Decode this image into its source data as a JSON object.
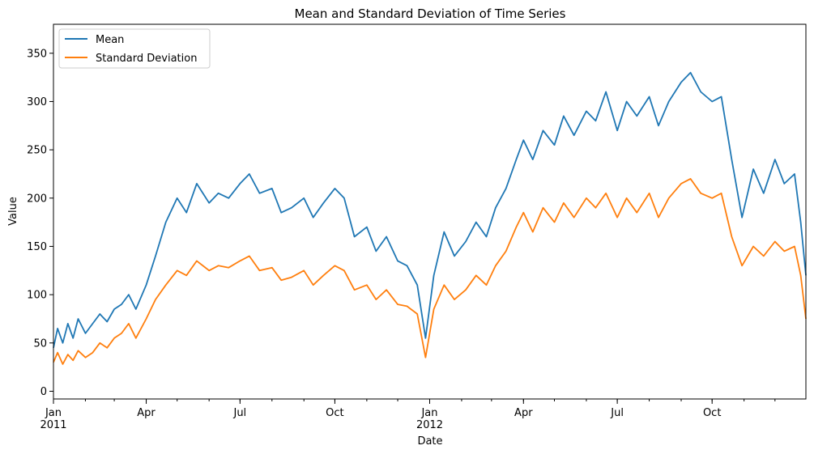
{
  "chart_data": {
    "type": "line",
    "title": "Mean and Standard Deviation of Time Series",
    "xlabel": "Date",
    "ylabel": "Value",
    "x_start": "2011-01-01",
    "x_end": "2012-12-31",
    "ylim": [
      -8,
      380
    ],
    "yticks": [
      0,
      50,
      100,
      150,
      200,
      250,
      300,
      350
    ],
    "xticks": [
      {
        "date": "2011-01-01",
        "label": "Jan",
        "sub": "2011"
      },
      {
        "date": "2011-04-01",
        "label": "Apr",
        "sub": ""
      },
      {
        "date": "2011-07-01",
        "label": "Jul",
        "sub": ""
      },
      {
        "date": "2011-10-01",
        "label": "Oct",
        "sub": ""
      },
      {
        "date": "2012-01-01",
        "label": "Jan",
        "sub": "2012"
      },
      {
        "date": "2012-04-01",
        "label": "Apr",
        "sub": ""
      },
      {
        "date": "2012-07-01",
        "label": "Jul",
        "sub": ""
      },
      {
        "date": "2012-10-01",
        "label": "Oct",
        "sub": ""
      }
    ],
    "legend_position": "top-left",
    "grid": false,
    "series": [
      {
        "name": "Mean",
        "color": "#1f77b4",
        "x": [
          "2011-01-01",
          "2011-01-05",
          "2011-01-10",
          "2011-01-15",
          "2011-01-20",
          "2011-01-25",
          "2011-02-01",
          "2011-02-08",
          "2011-02-15",
          "2011-02-22",
          "2011-03-01",
          "2011-03-08",
          "2011-03-15",
          "2011-03-22",
          "2011-04-01",
          "2011-04-10",
          "2011-04-20",
          "2011-05-01",
          "2011-05-10",
          "2011-05-20",
          "2011-06-01",
          "2011-06-10",
          "2011-06-20",
          "2011-07-01",
          "2011-07-10",
          "2011-07-20",
          "2011-08-01",
          "2011-08-10",
          "2011-08-20",
          "2011-09-01",
          "2011-09-10",
          "2011-09-20",
          "2011-10-01",
          "2011-10-10",
          "2011-10-20",
          "2011-11-01",
          "2011-11-10",
          "2011-11-20",
          "2011-12-01",
          "2011-12-10",
          "2011-12-20",
          "2011-12-28",
          "2012-01-05",
          "2012-01-15",
          "2012-01-25",
          "2012-02-05",
          "2012-02-15",
          "2012-02-25",
          "2012-03-05",
          "2012-03-15",
          "2012-03-25",
          "2012-04-01",
          "2012-04-10",
          "2012-04-20",
          "2012-05-01",
          "2012-05-10",
          "2012-05-20",
          "2012-06-01",
          "2012-06-10",
          "2012-06-20",
          "2012-07-01",
          "2012-07-10",
          "2012-07-20",
          "2012-08-01",
          "2012-08-10",
          "2012-08-20",
          "2012-09-01",
          "2012-09-10",
          "2012-09-20",
          "2012-10-01",
          "2012-10-10",
          "2012-10-20",
          "2012-10-30",
          "2012-11-10",
          "2012-11-20",
          "2012-12-01",
          "2012-12-10",
          "2012-12-20",
          "2012-12-26",
          "2012-12-31"
        ],
        "values": [
          45,
          65,
          50,
          70,
          55,
          75,
          60,
          70,
          80,
          72,
          85,
          90,
          100,
          85,
          110,
          140,
          175,
          200,
          185,
          215,
          195,
          205,
          200,
          215,
          225,
          205,
          210,
          185,
          190,
          200,
          180,
          195,
          210,
          200,
          160,
          170,
          145,
          160,
          135,
          130,
          110,
          55,
          120,
          165,
          140,
          155,
          175,
          160,
          190,
          210,
          240,
          260,
          240,
          270,
          255,
          285,
          265,
          290,
          280,
          310,
          270,
          300,
          285,
          305,
          275,
          300,
          320,
          330,
          310,
          300,
          305,
          240,
          180,
          230,
          205,
          240,
          215,
          225,
          175,
          120
        ]
      },
      {
        "name": "Standard Deviation",
        "color": "#ff7f0e",
        "x": [
          "2011-01-01",
          "2011-01-05",
          "2011-01-10",
          "2011-01-15",
          "2011-01-20",
          "2011-01-25",
          "2011-02-01",
          "2011-02-08",
          "2011-02-15",
          "2011-02-22",
          "2011-03-01",
          "2011-03-08",
          "2011-03-15",
          "2011-03-22",
          "2011-04-01",
          "2011-04-10",
          "2011-04-20",
          "2011-05-01",
          "2011-05-10",
          "2011-05-20",
          "2011-06-01",
          "2011-06-10",
          "2011-06-20",
          "2011-07-01",
          "2011-07-10",
          "2011-07-20",
          "2011-08-01",
          "2011-08-10",
          "2011-08-20",
          "2011-09-01",
          "2011-09-10",
          "2011-09-20",
          "2011-10-01",
          "2011-10-10",
          "2011-10-20",
          "2011-11-01",
          "2011-11-10",
          "2011-11-20",
          "2011-12-01",
          "2011-12-10",
          "2011-12-20",
          "2011-12-28",
          "2012-01-05",
          "2012-01-15",
          "2012-01-25",
          "2012-02-05",
          "2012-02-15",
          "2012-02-25",
          "2012-03-05",
          "2012-03-15",
          "2012-03-25",
          "2012-04-01",
          "2012-04-10",
          "2012-04-20",
          "2012-05-01",
          "2012-05-10",
          "2012-05-20",
          "2012-06-01",
          "2012-06-10",
          "2012-06-20",
          "2012-07-01",
          "2012-07-10",
          "2012-07-20",
          "2012-08-01",
          "2012-08-10",
          "2012-08-20",
          "2012-09-01",
          "2012-09-10",
          "2012-09-20",
          "2012-10-01",
          "2012-10-10",
          "2012-10-20",
          "2012-10-30",
          "2012-11-10",
          "2012-11-20",
          "2012-12-01",
          "2012-12-10",
          "2012-12-20",
          "2012-12-26",
          "2012-12-31"
        ],
        "values": [
          30,
          40,
          28,
          38,
          32,
          42,
          35,
          40,
          50,
          45,
          55,
          60,
          70,
          55,
          75,
          95,
          110,
          125,
          120,
          135,
          125,
          130,
          128,
          135,
          140,
          125,
          128,
          115,
          118,
          125,
          110,
          120,
          130,
          125,
          105,
          110,
          95,
          105,
          90,
          88,
          80,
          35,
          85,
          110,
          95,
          105,
          120,
          110,
          130,
          145,
          170,
          185,
          165,
          190,
          175,
          195,
          180,
          200,
          190,
          205,
          180,
          200,
          185,
          205,
          180,
          200,
          215,
          220,
          205,
          200,
          205,
          160,
          130,
          150,
          140,
          155,
          145,
          150,
          120,
          75
        ]
      }
    ]
  }
}
